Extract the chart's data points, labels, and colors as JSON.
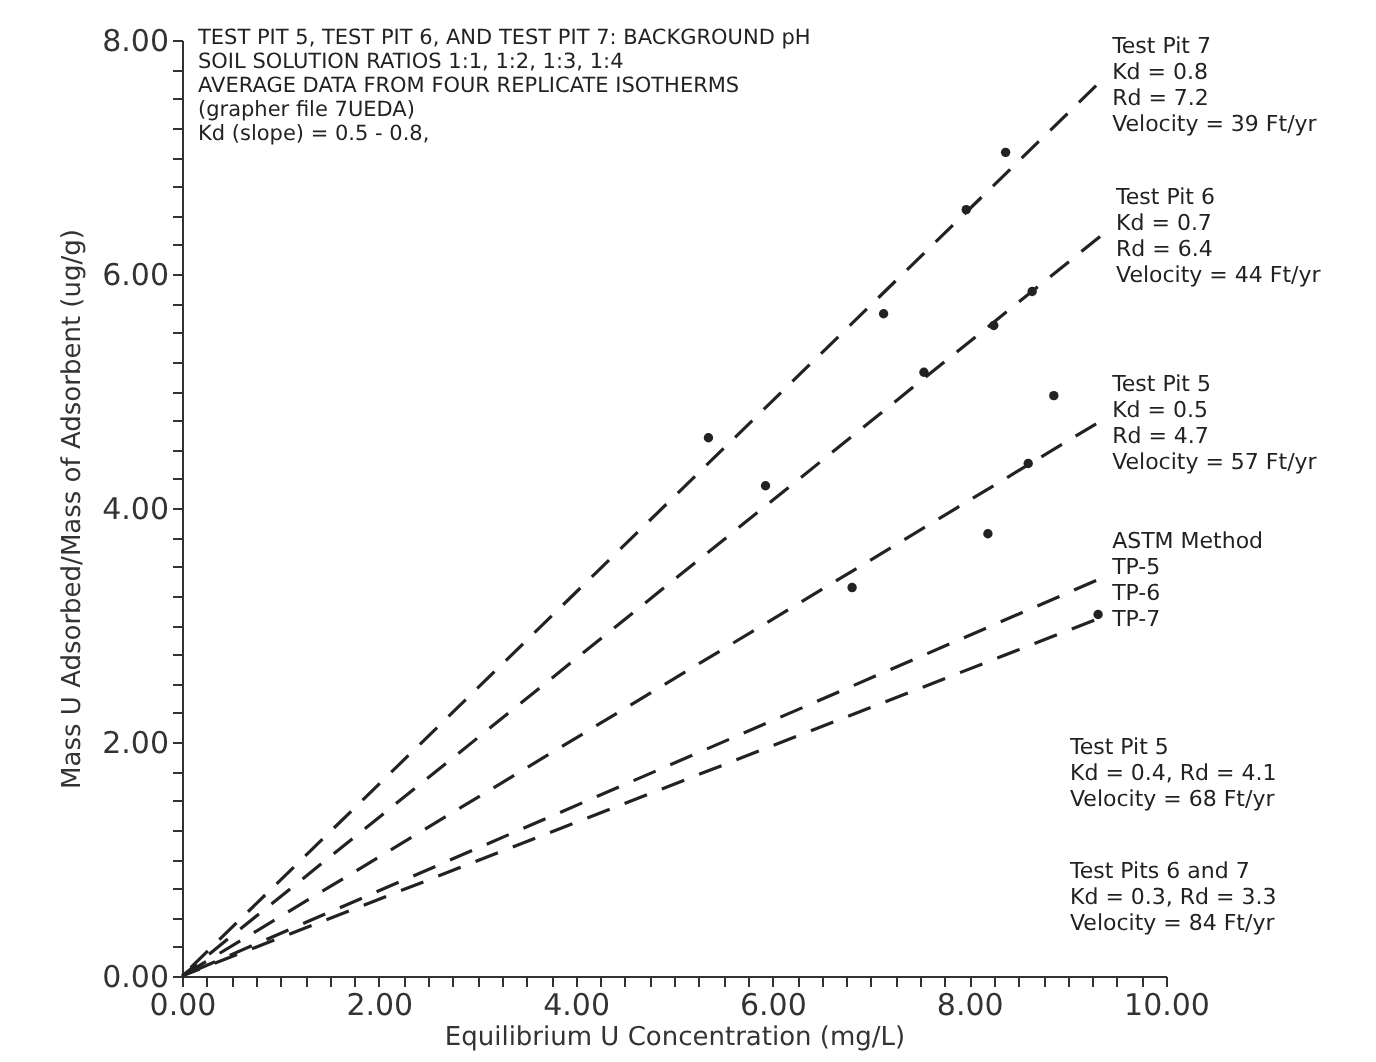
{
  "chart_data": {
    "type": "line",
    "xlabel": "Equilibrium U Concentration (mg/L)",
    "ylabel": "Mass U Adsorbed/Mass of Adsorbent (ug/g)",
    "xlim": [
      0,
      10
    ],
    "ylim": [
      0,
      8
    ],
    "xticks": [
      {
        "value": 0,
        "label": "0.00"
      },
      {
        "value": 0.25,
        "label": null
      },
      {
        "value": 0.5,
        "label": null
      },
      {
        "value": 0.75,
        "label": null
      },
      {
        "value": 1,
        "label": null
      },
      {
        "value": 1.25,
        "label": null
      },
      {
        "value": 1.5,
        "label": null
      },
      {
        "value": 1.75,
        "label": null
      },
      {
        "value": 2,
        "label": "2.00"
      },
      {
        "value": 2.25,
        "label": null
      },
      {
        "value": 2.5,
        "label": null
      },
      {
        "value": 2.75,
        "label": null
      },
      {
        "value": 3,
        "label": null
      },
      {
        "value": 3.25,
        "label": null
      },
      {
        "value": 3.5,
        "label": null
      },
      {
        "value": 3.75,
        "label": null
      },
      {
        "value": 4,
        "label": "4.00"
      },
      {
        "value": 4.25,
        "label": null
      },
      {
        "value": 4.5,
        "label": null
      },
      {
        "value": 4.75,
        "label": null
      },
      {
        "value": 5,
        "label": null
      },
      {
        "value": 5.25,
        "label": null
      },
      {
        "value": 5.5,
        "label": null
      },
      {
        "value": 5.75,
        "label": null
      },
      {
        "value": 6,
        "label": "6.00"
      },
      {
        "value": 6.25,
        "label": null
      },
      {
        "value": 6.5,
        "label": null
      },
      {
        "value": 6.75,
        "label": null
      },
      {
        "value": 7,
        "label": null
      },
      {
        "value": 7.25,
        "label": null
      },
      {
        "value": 7.5,
        "label": null
      },
      {
        "value": 7.75,
        "label": null
      },
      {
        "value": 8,
        "label": "8.00"
      },
      {
        "value": 8.25,
        "label": null
      },
      {
        "value": 8.5,
        "label": null
      },
      {
        "value": 8.75,
        "label": null
      },
      {
        "value": 9,
        "label": null
      },
      {
        "value": 9.25,
        "label": null
      },
      {
        "value": 9.5,
        "label": null
      },
      {
        "value": 9.75,
        "label": null
      },
      {
        "value": 10,
        "label": "10.00"
      }
    ],
    "yticks": [
      {
        "value": 0,
        "label": "0.00"
      },
      {
        "value": 0.25,
        "label": null
      },
      {
        "value": 0.5,
        "label": null
      },
      {
        "value": 0.75,
        "label": null
      },
      {
        "value": 1,
        "label": null
      },
      {
        "value": 1.25,
        "label": null
      },
      {
        "value": 1.5,
        "label": null
      },
      {
        "value": 1.75,
        "label": null
      },
      {
        "value": 2,
        "label": "2.00"
      },
      {
        "value": 2.25,
        "label": null
      },
      {
        "value": 2.5,
        "label": null
      },
      {
        "value": 2.75,
        "label": null
      },
      {
        "value": 3,
        "label": null
      },
      {
        "value": 3.25,
        "label": null
      },
      {
        "value": 3.5,
        "label": null
      },
      {
        "value": 3.75,
        "label": null
      },
      {
        "value": 4,
        "label": "4.00"
      },
      {
        "value": 4.25,
        "label": null
      },
      {
        "value": 4.5,
        "label": null
      },
      {
        "value": 4.75,
        "label": null
      },
      {
        "value": 5,
        "label": null
      },
      {
        "value": 5.25,
        "label": null
      },
      {
        "value": 5.5,
        "label": null
      },
      {
        "value": 5.75,
        "label": null
      },
      {
        "value": 6,
        "label": "6.00"
      },
      {
        "value": 6.25,
        "label": null
      },
      {
        "value": 6.5,
        "label": null
      },
      {
        "value": 6.75,
        "label": null
      },
      {
        "value": 7,
        "label": null
      },
      {
        "value": 7.25,
        "label": null
      },
      {
        "value": 7.5,
        "label": null
      },
      {
        "value": 7.75,
        "label": null
      },
      {
        "value": 8,
        "label": "8.00"
      }
    ],
    "grid": false,
    "legend": false,
    "series": [
      {
        "type": "line",
        "line_style": "dashed",
        "marker": "none",
        "color": "#222222",
        "x": [
          0,
          9.29
        ],
        "values": [
          0,
          7.61
        ]
      },
      {
        "type": "line",
        "line_style": "dashed",
        "marker": "none",
        "color": "#222222",
        "x": [
          0,
          9.33
        ],
        "values": [
          0,
          6.32
        ]
      },
      {
        "type": "line",
        "line_style": "dashed",
        "marker": "none",
        "color": "#222222",
        "x": [
          0,
          9.29
        ],
        "values": [
          0,
          4.72
        ]
      },
      {
        "type": "line",
        "line_style": "dashed",
        "marker": "none",
        "color": "#222222",
        "x": [
          0,
          9.29
        ],
        "values": [
          0,
          3.38
        ]
      },
      {
        "type": "line",
        "line_style": "dashed",
        "marker": "none",
        "color": "#222222",
        "x": [
          0,
          9.27
        ],
        "values": [
          0,
          3.04
        ]
      },
      {
        "type": "scatter",
        "marker": "circle",
        "color": "#222222",
        "x": [
          5.35,
          7.13,
          7.97,
          8.37,
          5.93,
          7.54,
          8.25,
          8.64,
          6.81,
          8.19,
          8.6,
          8.86,
          9.31
        ],
        "values": [
          4.6,
          5.66,
          6.55,
          7.04,
          4.19,
          5.16,
          5.56,
          5.85,
          3.32,
          3.78,
          4.38,
          4.96,
          3.09
        ]
      }
    ],
    "annotations": [
      "TEST PIT 5, TEST PIT 6, AND TEST PIT 7:  BACKGROUND pH\nSOIL SOLUTION RATIOS 1:1, 1:2, 1:3, 1:4\nAVERAGE DATA FROM FOUR REPLICATE ISOTHERMS\n(grapher file 7UEDA)\nKd (slope) = 0.5 - 0.8,",
      "Test Pit 7\nKd = 0.8\nRd = 7.2\nVelocity = 39 Ft/yr",
      "Test Pit 6\nKd = 0.7\nRd = 6.4\nVelocity = 44 Ft/yr",
      "Test Pit 5\nKd = 0.5\nRd = 4.7\nVelocity = 57 Ft/yr",
      "ASTM Method\nTP-5\nTP-6\nTP-7",
      "Test Pit 5\nKd = 0.4, Rd = 4.1\nVelocity = 68 Ft/yr",
      "Test Pits 6 and 7\nKd = 0.3, Rd = 3.3\nVelocity = 84 Ft/yr"
    ]
  }
}
